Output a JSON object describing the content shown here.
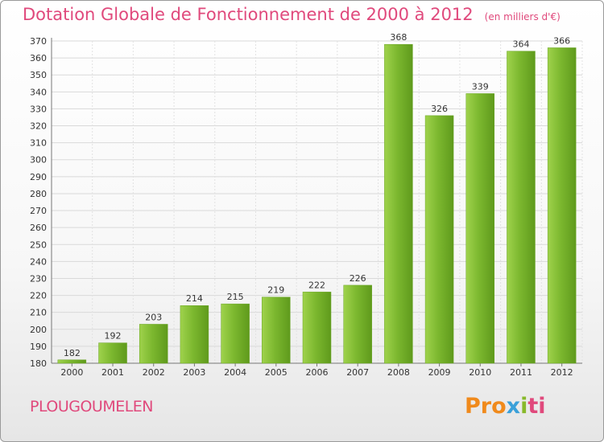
{
  "chart_data": {
    "type": "bar",
    "title": "Dotation Globale de Fonctionnement de 2000 à 2012",
    "unit": "(en milliers d'€)",
    "categories": [
      "2000",
      "2001",
      "2002",
      "2003",
      "2004",
      "2005",
      "2006",
      "2007",
      "2008",
      "2009",
      "2010",
      "2011",
      "2012"
    ],
    "values": [
      182,
      192,
      203,
      214,
      215,
      219,
      222,
      226,
      368,
      326,
      339,
      364,
      366
    ],
    "ylim": [
      180,
      370
    ],
    "ytick_step": 10,
    "grid": true,
    "bar_color": "#7cb82f",
    "bar_color_light": "#9fd24c",
    "bar_color_dark": "#5f9a1c"
  },
  "footer": {
    "commune": "PLOUGOUMELEN",
    "logo": {
      "p1": "Pro",
      "p2": "x",
      "p3": "i",
      "p4": "ti"
    }
  }
}
